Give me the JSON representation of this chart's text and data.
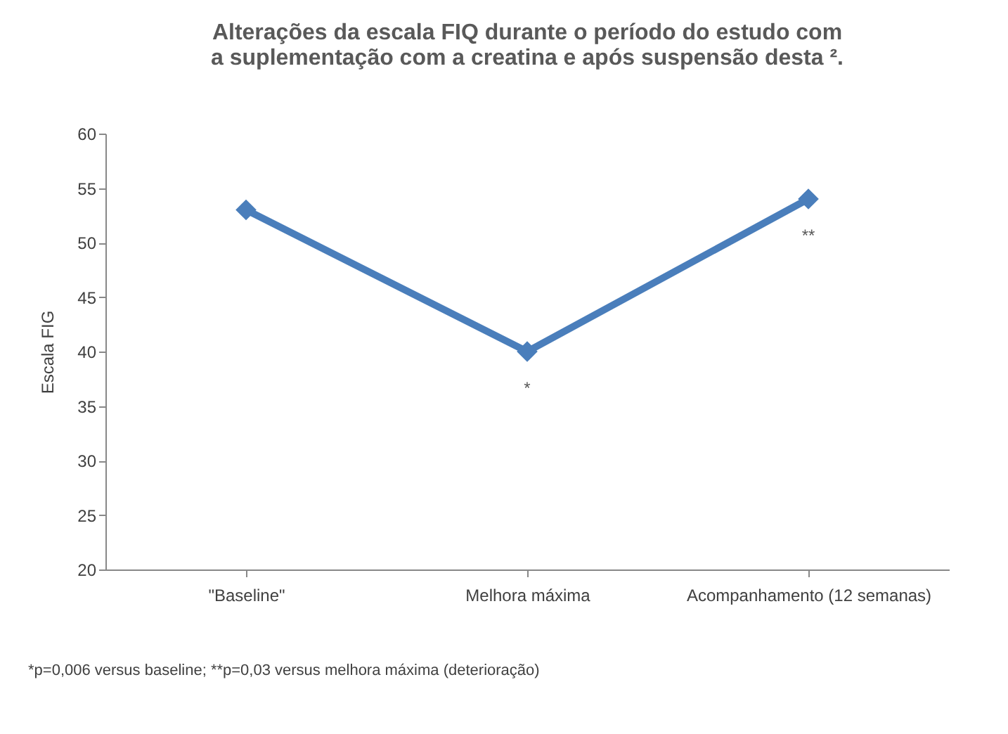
{
  "chart_data": {
    "type": "line",
    "title": "Alterações da escala FIQ durante o período do estudo com a suplementação com a creatina e após suspensão desta ².",
    "ylabel": "Escala FIG",
    "categories": [
      "\"Baseline\"",
      "Melhora máxima",
      "Acompanhamento (12 semanas)"
    ],
    "series": [
      {
        "color": "#4a7ebb",
        "values": [
          53,
          40,
          54
        ]
      }
    ],
    "ylim": [
      20,
      60
    ],
    "yticks": [
      20,
      25,
      30,
      35,
      40,
      45,
      50,
      55,
      60
    ],
    "marker": "diamond",
    "line_style": "solid",
    "grid": false,
    "annotations": [
      {
        "text": "*",
        "x": "Melhora máxima",
        "y": 40
      },
      {
        "text": "**",
        "x": "Acompanhamento (12 semanas)",
        "y": 54
      },
      "*p=0,006 versus baseline; **p=0,03 versus  melhora máxima (deterioração)"
    ]
  }
}
